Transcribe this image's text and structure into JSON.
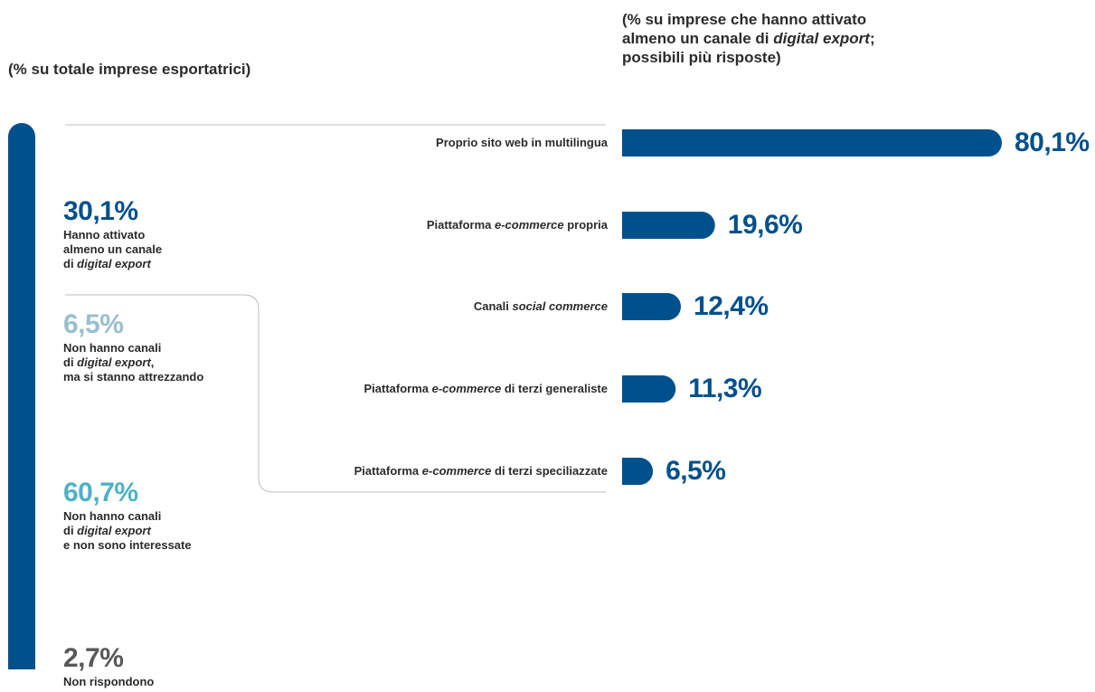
{
  "subtitles": {
    "left": "(% su totale imprese esportatrici)",
    "right_line1": "(% su imprese che hanno attivato",
    "right_line2_pre": "almeno un canale di ",
    "right_line2_italic": "digital export",
    "right_line2_post": ";",
    "right_line3": "possibili più risposte)"
  },
  "colors": {
    "dark_blue": "#00508c",
    "light_grey_blue": "#99bfcf",
    "teal": "#4fb1c6",
    "dark_grey": "#58585a",
    "line": "#bdbdbd"
  },
  "stack": {
    "segments": [
      {
        "label": "30,1%",
        "value": 30.1,
        "desc_lines": [
          {
            "text": "Hanno attivato"
          },
          {
            "text": "almeno un canale"
          },
          {
            "pre": "di ",
            "italic": "digital export",
            "post": ""
          }
        ]
      },
      {
        "label": "6,5%",
        "value": 6.5,
        "desc_lines": [
          {
            "text": "Non hanno canali"
          },
          {
            "pre": "di ",
            "italic": "digital export",
            "post": ","
          },
          {
            "text": "ma si stanno attrezzando"
          }
        ]
      },
      {
        "label": "60,7%",
        "value": 60.7,
        "desc_lines": [
          {
            "text": "Non hanno canali"
          },
          {
            "pre": "di ",
            "italic": "digital export",
            "post": ""
          },
          {
            "text": "e non sono interessate"
          }
        ]
      },
      {
        "label": "2,7%",
        "value": 2.7,
        "desc_lines": [
          {
            "text": "Non rispondono"
          }
        ]
      }
    ]
  },
  "chart_data": {
    "type": "bar",
    "orientation": "horizontal",
    "categories": [
      {
        "pre": "Proprio sito web in multilingua",
        "italic": "",
        "post": ""
      },
      {
        "pre": "Piattaforma ",
        "italic": "e-commerce",
        "post": " propria"
      },
      {
        "pre": "Canali ",
        "italic": "social commerce",
        "post": ""
      },
      {
        "pre": "Piattaforma ",
        "italic": "e-commerce",
        "post": " di terzi generaliste"
      },
      {
        "pre": "Piattaforma ",
        "italic": "e-commerce",
        "post": " di terzi speciliazzate"
      }
    ],
    "values": [
      80.1,
      19.6,
      12.4,
      11.3,
      6.5
    ],
    "value_labels": [
      "80,1%",
      "19,6%",
      "12,4%",
      "11,3%",
      "6,5%"
    ],
    "xlim": [
      0,
      80.1
    ]
  }
}
